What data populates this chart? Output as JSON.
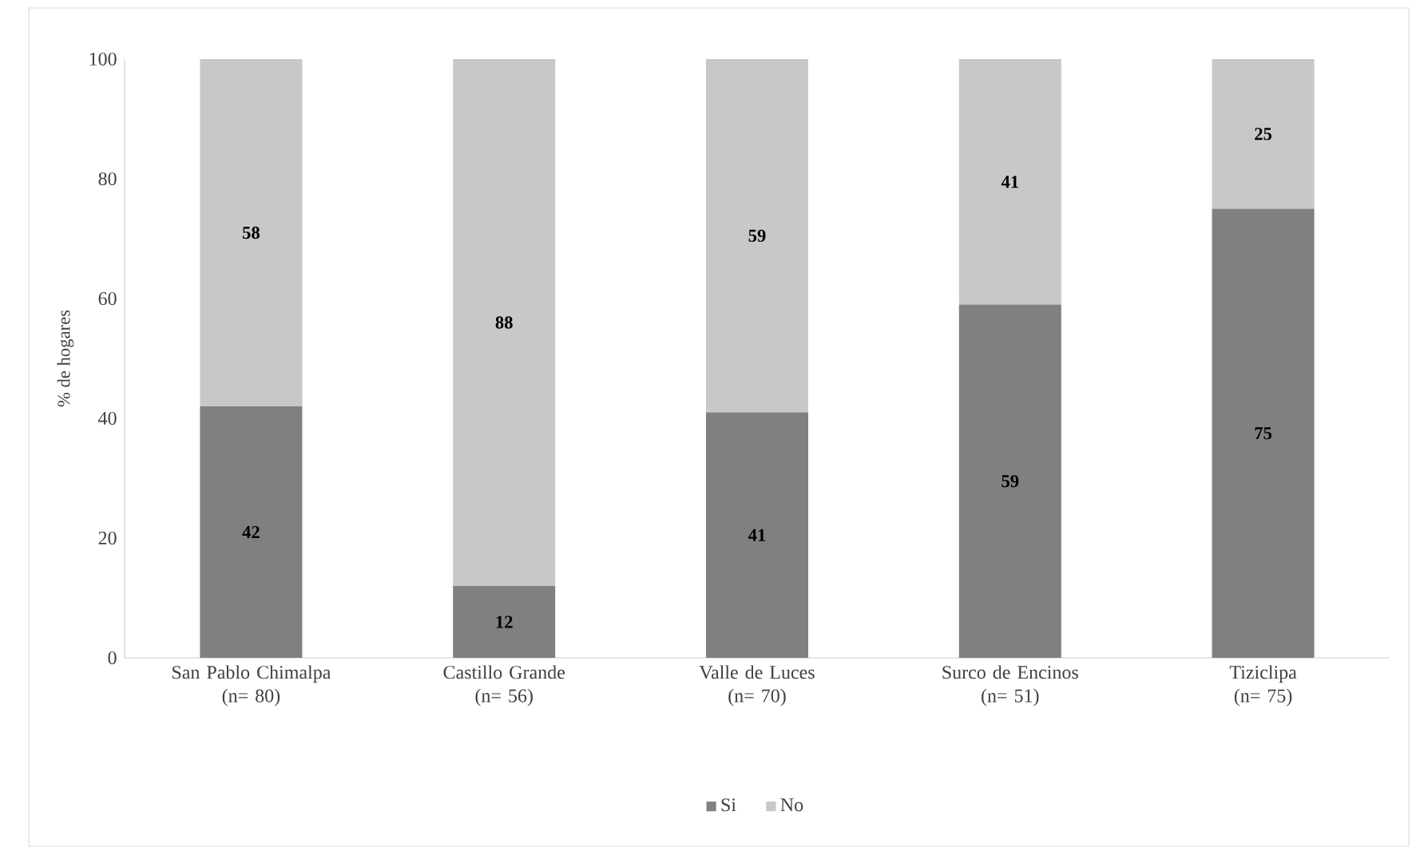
{
  "chart_data": {
    "type": "bar",
    "stacked": true,
    "ylabel": "% de hogares",
    "categories": [
      "San Pablo Chimalpa\n(n= 80)",
      "Castillo Grande\n(n= 56)",
      "Valle de Luces\n(n= 70)",
      "Surco de Encinos\n(n= 51)",
      "Tiziclipa\n(n= 75)"
    ],
    "series": [
      {
        "name": "Si",
        "color": "#808080",
        "values": [
          42,
          12,
          41,
          59,
          75
        ]
      },
      {
        "name": "No",
        "color": "#c8c8c8",
        "values": [
          58,
          88,
          59,
          41,
          25
        ]
      }
    ],
    "ylim": [
      0,
      100
    ],
    "yticks": [
      0,
      20,
      40,
      60,
      80,
      100
    ],
    "grid": false,
    "legend": "bottom",
    "data_labels": true
  }
}
